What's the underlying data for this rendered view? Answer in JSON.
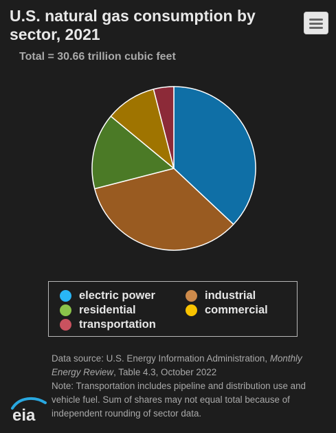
{
  "chart_data": {
    "type": "pie",
    "title": "U.S. natural gas consumption by sector, 2021",
    "subtitle": "Total = 30.66 trillion cubic feet",
    "slices": [
      {
        "name": "electric power",
        "value": 37,
        "color": "#0f6fa6"
      },
      {
        "name": "industrial",
        "value": 34,
        "color": "#995b21"
      },
      {
        "name": "residential",
        "value": 15,
        "color": "#4b7a26"
      },
      {
        "name": "commercial",
        "value": 10,
        "color": "#9f7400"
      },
      {
        "name": "transportation",
        "value": 4,
        "color": "#8c2a38"
      }
    ],
    "slice_border_color": "#ffffff",
    "legend_placement": "bottom",
    "legend": [
      {
        "label": "electric power",
        "color": "#29b6f6"
      },
      {
        "label": "industrial",
        "color": "#cd8a4b"
      },
      {
        "label": "residential",
        "color": "#8bc34a"
      },
      {
        "label": "commercial",
        "color": "#f9c300"
      },
      {
        "label": "transportation",
        "color": "#c9525f"
      }
    ]
  },
  "menu": {
    "icon": "hamburger-menu-icon"
  },
  "footnote": {
    "source_prefix": "Data source: U.S. Energy Information Administration, ",
    "source_publication": "Monthly Energy Review",
    "source_suffix": ", Table 4.3, October 2022",
    "note": "Note: Transportation includes pipeline and distribution use and vehicle fuel. Sum of shares may not equal total because of independent rounding of sector data."
  },
  "logo": {
    "text": "eia",
    "icon": "eia-logo-icon",
    "color": "#29a8e0"
  }
}
